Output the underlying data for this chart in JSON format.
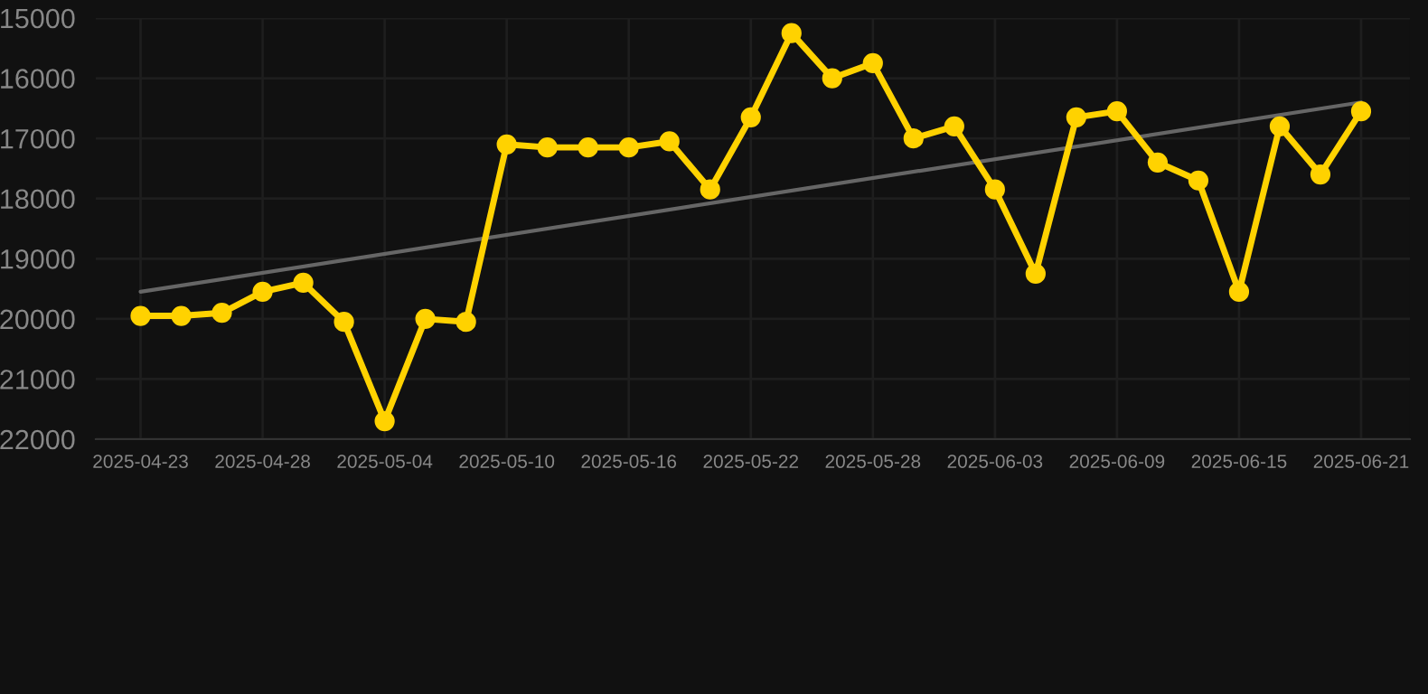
{
  "chart_data": {
    "type": "line",
    "categories": [
      "2025-04-23",
      null,
      null,
      "2025-04-28",
      null,
      null,
      "2025-05-04",
      null,
      null,
      "2025-05-10",
      null,
      null,
      "2025-05-16",
      null,
      null,
      "2025-05-22",
      null,
      null,
      "2025-05-28",
      null,
      null,
      "2025-06-03",
      null,
      null,
      "2025-06-09",
      null,
      null,
      "2025-06-15",
      null,
      null,
      "2025-06-21"
    ],
    "series": [
      {
        "color": "#ffd200",
        "marker": "circle",
        "values": [
          19950,
          19950,
          19900,
          19550,
          19400,
          20050,
          21700,
          20000,
          20050,
          17100,
          17150,
          17150,
          17150,
          17050,
          17850,
          16650,
          15250,
          16000,
          15750,
          17000,
          16800,
          17850,
          19250,
          16650,
          16550,
          17400,
          17700,
          19550,
          16800,
          17600,
          16550
        ]
      },
      {
        "type": "line",
        "color": "#666666",
        "marker": "none",
        "values": [
          19550,
          null,
          null,
          null,
          null,
          null,
          null,
          null,
          null,
          null,
          null,
          null,
          null,
          null,
          null,
          null,
          null,
          null,
          null,
          null,
          null,
          null,
          null,
          null,
          null,
          null,
          null,
          null,
          null,
          null,
          16400
        ]
      }
    ],
    "ylim": [
      22000,
      15000
    ],
    "yticks": [
      15000,
      16000,
      17000,
      18000,
      19000,
      20000,
      21000,
      22000
    ],
    "grid": true,
    "legend": false
  }
}
